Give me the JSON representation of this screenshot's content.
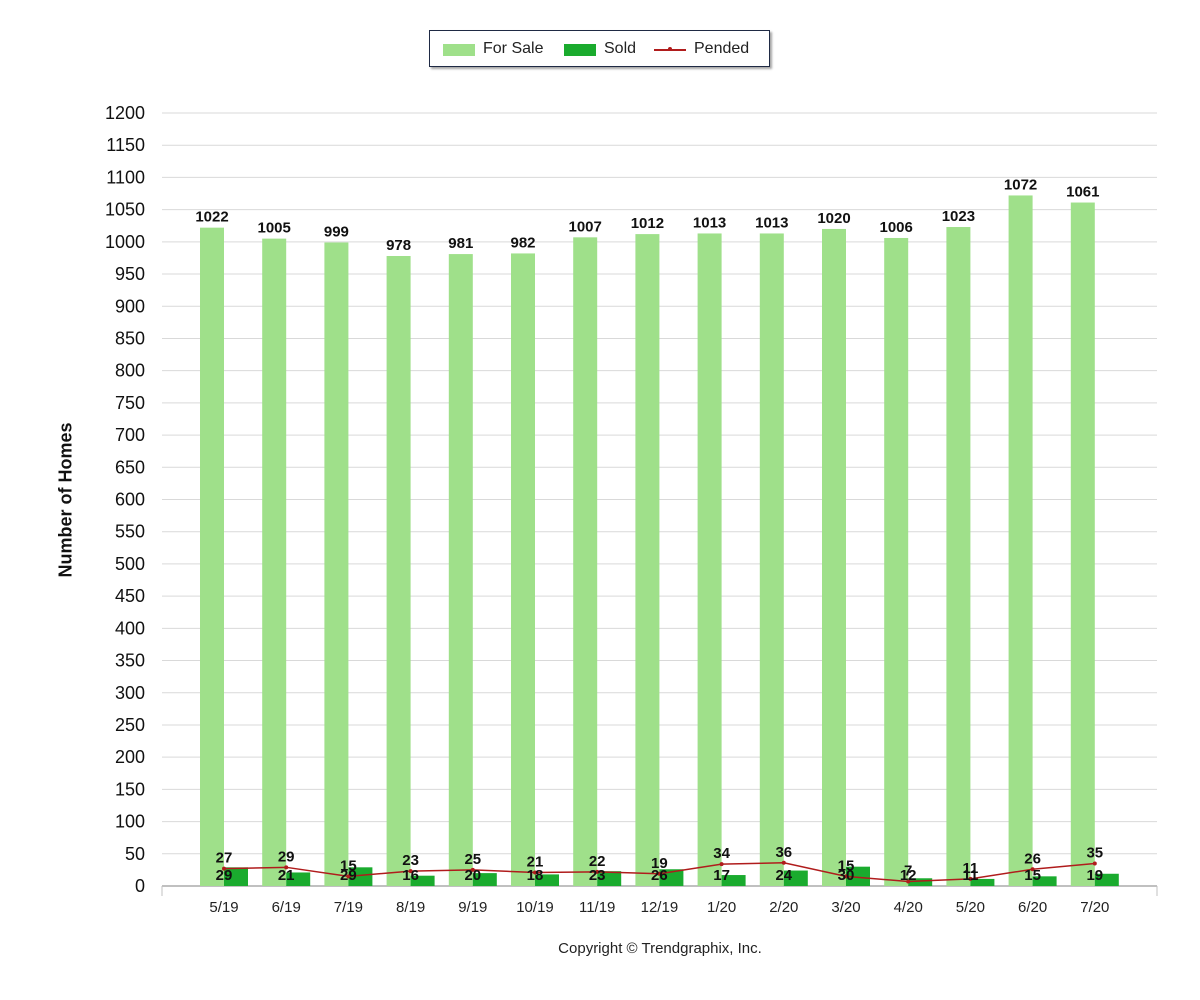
{
  "legend": {
    "for_sale": "For Sale",
    "sold": "Sold",
    "pended": "Pended"
  },
  "axis": {
    "ylabel": "Number of Homes"
  },
  "footer": {
    "copyright": "Copyright © Trendgraphix, Inc."
  },
  "colors": {
    "for_sale": "#9fe08a",
    "sold": "#1aab2e",
    "pended": "#b01c1c",
    "grid": "#d9d9d9"
  },
  "chart_data": {
    "type": "bar",
    "categories": [
      "5/19",
      "6/19",
      "7/19",
      "8/19",
      "9/19",
      "10/19",
      "11/19",
      "12/19",
      "1/20",
      "2/20",
      "3/20",
      "4/20",
      "5/20",
      "6/20",
      "7/20"
    ],
    "series": [
      {
        "name": "For Sale",
        "type": "bar",
        "values": [
          1022,
          1005,
          999,
          978,
          981,
          982,
          1007,
          1012,
          1013,
          1013,
          1020,
          1006,
          1023,
          1072,
          1061
        ]
      },
      {
        "name": "Sold",
        "type": "bar",
        "values": [
          29,
          21,
          29,
          16,
          20,
          18,
          23,
          26,
          17,
          24,
          30,
          12,
          11,
          15,
          19
        ]
      },
      {
        "name": "Pended",
        "type": "line",
        "values": [
          27,
          29,
          15,
          23,
          25,
          21,
          22,
          19,
          34,
          36,
          15,
          7,
          11,
          26,
          35
        ]
      }
    ],
    "ylabel": "Number of Homes",
    "ylim": [
      0,
      1200
    ],
    "yticks": [
      0,
      50,
      100,
      150,
      200,
      250,
      300,
      350,
      400,
      450,
      500,
      550,
      600,
      650,
      700,
      750,
      800,
      850,
      900,
      950,
      1000,
      1050,
      1100,
      1150,
      1200
    ],
    "grid": true,
    "legend_position": "top-center"
  }
}
